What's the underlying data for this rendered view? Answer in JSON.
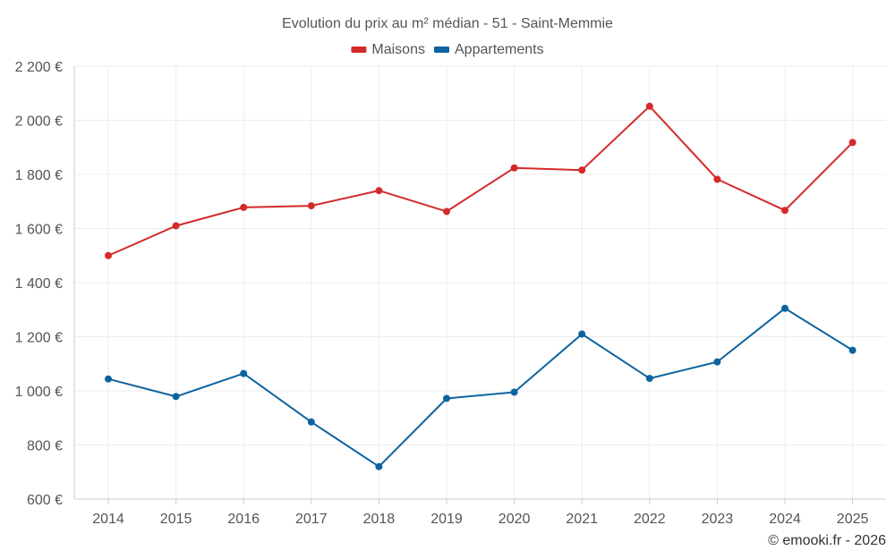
{
  "chart_data": {
    "type": "line",
    "title": "Evolution du prix au m² médian - 51 - Saint-Memmie",
    "categories": [
      "2014",
      "2015",
      "2016",
      "2017",
      "2018",
      "2019",
      "2020",
      "2021",
      "2022",
      "2023",
      "2024",
      "2025"
    ],
    "series": [
      {
        "name": "Maisons",
        "color": "#d42a2a",
        "values": [
          1500,
          1610,
          1678,
          1684,
          1740,
          1663,
          1824,
          1816,
          2052,
          1782,
          1667,
          1918
        ]
      },
      {
        "name": "Appartements",
        "color": "#0d63a0",
        "values": [
          1044,
          979,
          1064,
          885,
          720,
          972,
          995,
          1210,
          1046,
          1107,
          1305,
          1150
        ]
      }
    ],
    "ylim": [
      600,
      2200
    ],
    "yticks": [
      600,
      800,
      1000,
      1200,
      1400,
      1600,
      1800,
      2000,
      2200
    ],
    "ytick_labels": [
      "600 €",
      "800 €",
      "1 000 €",
      "1 200 €",
      "1 400 €",
      "1 600 €",
      "1 800 €",
      "2 000 €",
      "2 200 €"
    ],
    "xlabel": "",
    "ylabel": "",
    "grid": true,
    "legend_position": "top-center"
  },
  "credit": "© emooki.fr - 2026"
}
